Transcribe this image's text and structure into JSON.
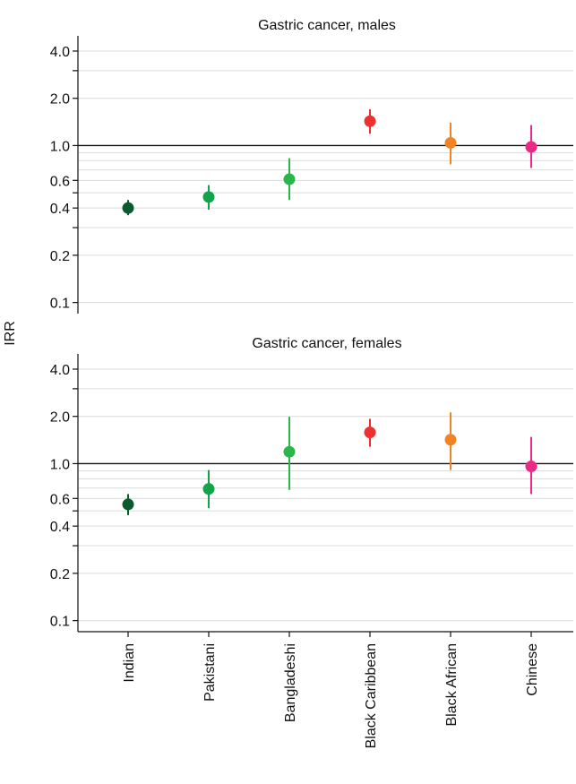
{
  "chart_data": {
    "type": "scatter",
    "ylabel": "IRR",
    "y_scale": "log",
    "ylim": [
      0.085,
      5.0
    ],
    "y_ticks": [
      {
        "value": 0.1,
        "label": "0.1"
      },
      {
        "value": 0.2,
        "label": "0.2"
      },
      {
        "value": 0.4,
        "label": "0.4"
      },
      {
        "value": 0.6,
        "label": "0.6"
      },
      {
        "value": 1.0,
        "label": "1.0"
      },
      {
        "value": 2.0,
        "label": "2.0"
      },
      {
        "value": 4.0,
        "label": "4.0"
      }
    ],
    "minor_ticks": [
      0.3,
      0.5,
      3.0
    ],
    "grid_values": [
      0.1,
      0.2,
      0.3,
      0.4,
      0.5,
      0.6,
      0.7,
      0.8,
      0.9,
      2.0,
      3.0,
      4.0
    ],
    "reference_line": 1.0,
    "categories": [
      "Indian",
      "Pakistani",
      "Bangladeshi",
      "Black Caribbean",
      "Black African",
      "Chinese"
    ],
    "colors": [
      "#0b5a2e",
      "#13a34a",
      "#2bb54a",
      "#ee3030",
      "#f08424",
      "#ec2a86"
    ],
    "panels": [
      {
        "title": "Gastric cancer, males",
        "estimate": [
          0.4,
          0.47,
          0.61,
          1.43,
          1.04,
          0.98
        ],
        "lower": [
          0.36,
          0.39,
          0.45,
          1.19,
          0.76,
          0.72
        ],
        "upper": [
          0.45,
          0.56,
          0.83,
          1.7,
          1.4,
          1.35
        ]
      },
      {
        "title": "Gastric cancer, females",
        "estimate": [
          0.55,
          0.69,
          1.19,
          1.58,
          1.42,
          0.96
        ],
        "lower": [
          0.47,
          0.52,
          0.68,
          1.28,
          0.91,
          0.64
        ],
        "upper": [
          0.64,
          0.91,
          1.99,
          1.93,
          2.12,
          1.48
        ]
      }
    ]
  }
}
